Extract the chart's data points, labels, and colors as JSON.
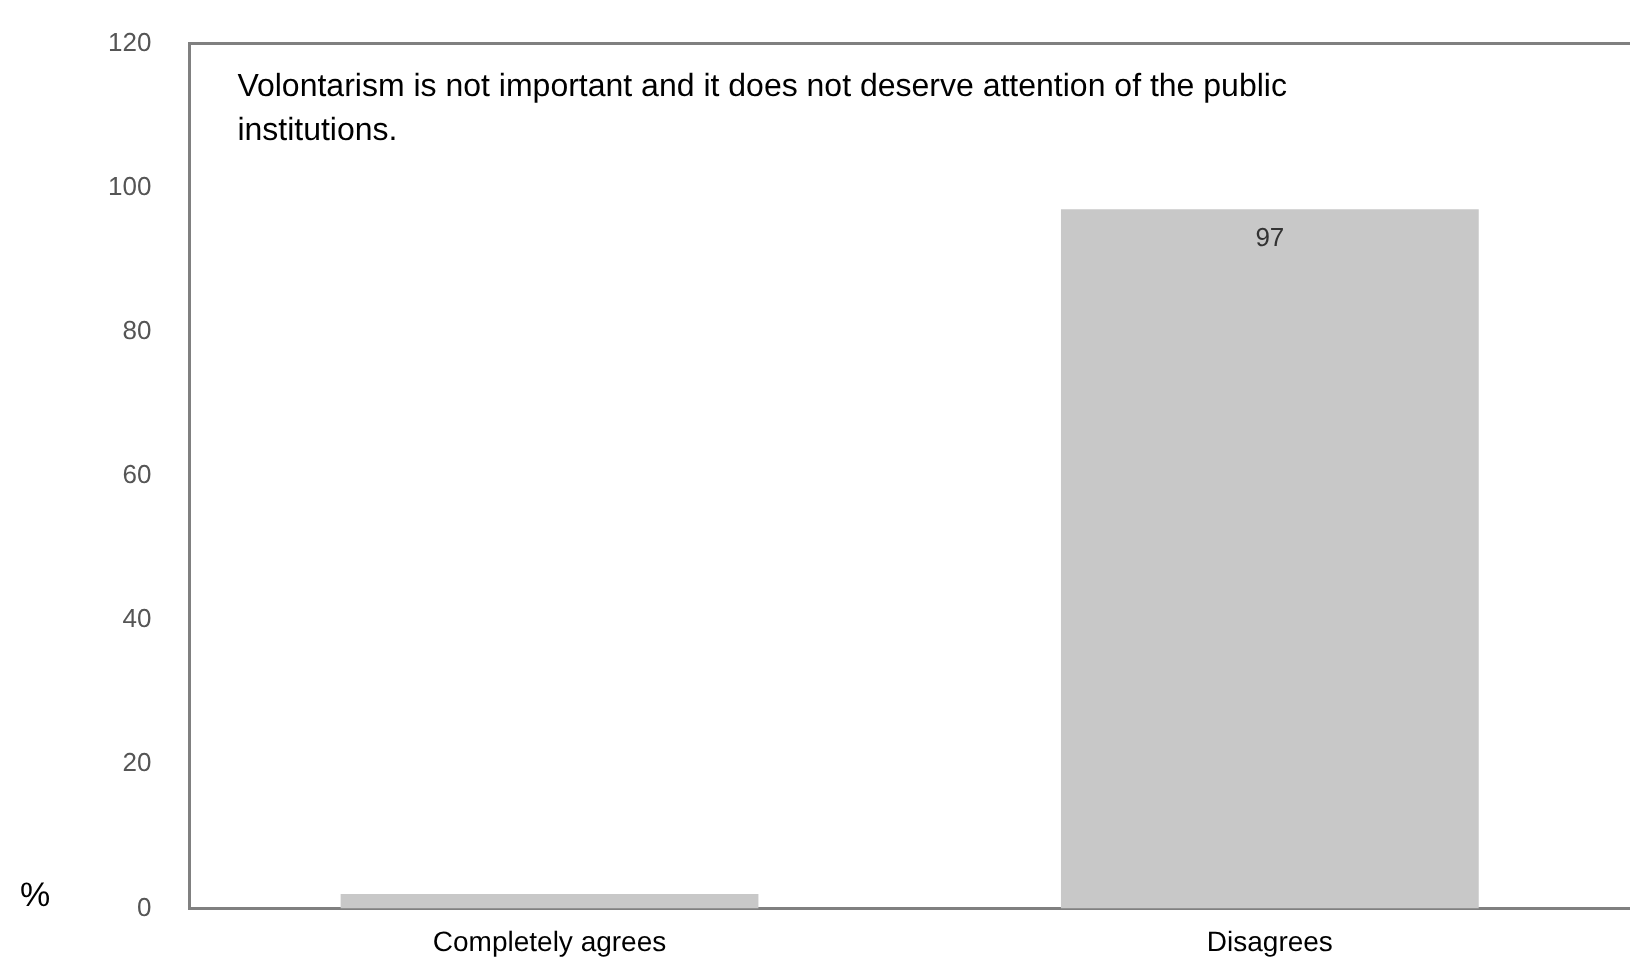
{
  "chart_data": {
    "type": "bar",
    "title": "Volontarism is not important and it does not deserve attention of the public institutions.",
    "ylabel": "%",
    "categories": [
      "Completely agrees",
      "Disagrees"
    ],
    "values": [
      2,
      97
    ],
    "value_labels": [
      null,
      "97"
    ],
    "color": "#c8c8c8",
    "ylim": [
      0,
      120
    ],
    "yticks": [
      0,
      20,
      40,
      60,
      80,
      100,
      120
    ],
    "grid": false,
    "legend": false
  }
}
